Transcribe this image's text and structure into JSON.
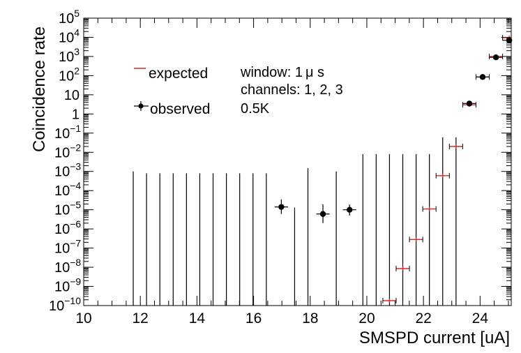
{
  "chart_data": {
    "type": "scatter",
    "xlabel": "SMSPD current [uA]",
    "ylabel": "Coincidence rate",
    "xlim": [
      10,
      25.1
    ],
    "ylim_log10": [
      -10,
      5
    ],
    "yscale": "log",
    "x_ticks": [
      10,
      12,
      14,
      16,
      18,
      20,
      22,
      24
    ],
    "y_ticks_exp": [
      -10,
      -9,
      -8,
      -7,
      -6,
      -5,
      -4,
      -3,
      -2,
      -1,
      0,
      1,
      2,
      3,
      4,
      5
    ],
    "y_tick_labels": {
      "-10": "10",
      "-9": "10",
      "-8": "10",
      "-7": "10",
      "-6": "10",
      "-5": "10",
      "-4": "10",
      "-3": "10",
      "-2": "10",
      "-1": "10",
      "0": "1",
      "1": "10",
      "2": "10",
      "3": "10",
      "4": "10",
      "5": "10"
    },
    "legend": {
      "placement": "top-left",
      "expected": "expected",
      "observed": "observed",
      "colors": {
        "expected": "#d62728",
        "observed": "#000000"
      }
    },
    "annotations": {
      "window": "window: 1 μ s",
      "channels": "channels: 1, 2, 3",
      "temp": "0.5K"
    },
    "upper_limits": {
      "x": [
        11.75,
        12.22,
        12.69,
        13.16,
        13.63,
        14.1,
        14.57,
        15.04,
        15.51,
        15.98,
        16.45,
        17.45,
        17.92,
        18.92,
        19.86,
        20.33,
        20.8,
        21.27,
        21.74,
        22.21,
        22.68,
        23.15
      ],
      "y_top": [
        0.001,
        0.0008,
        0.0008,
        0.0008,
        0.0008,
        0.0008,
        0.0008,
        0.0008,
        0.0008,
        0.0008,
        0.0008,
        1.3e-05,
        0.0015,
        0.001,
        0.008,
        0.008,
        0.008,
        0.008,
        0.008,
        0.008,
        0.06,
        0.06
      ]
    },
    "series": [
      {
        "name": "observed",
        "x": [
          16.98,
          18.45,
          19.39,
          23.62,
          24.09,
          24.56,
          25.03
        ],
        "xerr": [
          0.235,
          0.235,
          0.235,
          0.235,
          0.235,
          0.235,
          0.235
        ],
        "y": [
          1.4e-05,
          6e-06,
          1e-05,
          3.5,
          85,
          900,
          7000
        ],
        "ylo": [
          6e-06,
          2e-06,
          5e-06,
          3.5,
          85,
          900,
          7000
        ],
        "yhi": [
          3.5e-05,
          1.9e-05,
          1.9e-05,
          3.5,
          85,
          900,
          7000
        ]
      },
      {
        "name": "expected",
        "x": [
          20.8,
          21.27,
          21.74,
          22.21,
          22.68,
          23.15,
          23.62,
          24.09,
          24.56,
          25.03
        ],
        "xerr": [
          0.235,
          0.235,
          0.235,
          0.235,
          0.235,
          0.235,
          0.235,
          0.235,
          0.235,
          0.235
        ],
        "y": [
          1.8e-10,
          8.5e-09,
          2.8e-07,
          1.1e-05,
          0.0006,
          0.02,
          3,
          85,
          1000,
          9500
        ]
      }
    ]
  }
}
